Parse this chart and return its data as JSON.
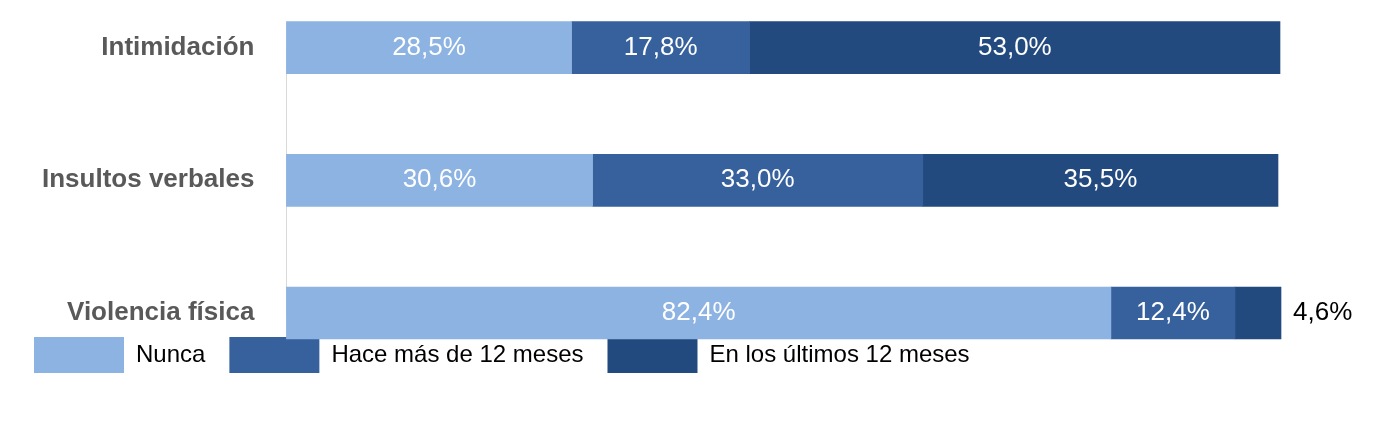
{
  "chart_data": {
    "type": "bar",
    "orientation": "horizontal",
    "stacked": true,
    "categories": [
      "Intimidación",
      "Insultos verbales",
      "Violencia física"
    ],
    "legend": "bottom",
    "tick_labels": "y",
    "series": [
      {
        "name": "Nunca",
        "color": "#8db3e2",
        "values": [
          28.5,
          30.6,
          82.4
        ],
        "value_labels": [
          "28,5%",
          "30,6%",
          "82,4%"
        ]
      },
      {
        "name": "Hace más de 12 meses",
        "color": "#36619c",
        "values": [
          17.8,
          33.0,
          12.4
        ],
        "value_labels": [
          "17,8%",
          "33,0%",
          "12,4%"
        ]
      },
      {
        "name": "En los últimos 12 meses",
        "color": "#234a7e",
        "values": [
          53.0,
          35.5,
          4.6
        ],
        "value_labels": [
          "53,0%",
          "35,5%",
          "4,6%"
        ]
      }
    ]
  }
}
